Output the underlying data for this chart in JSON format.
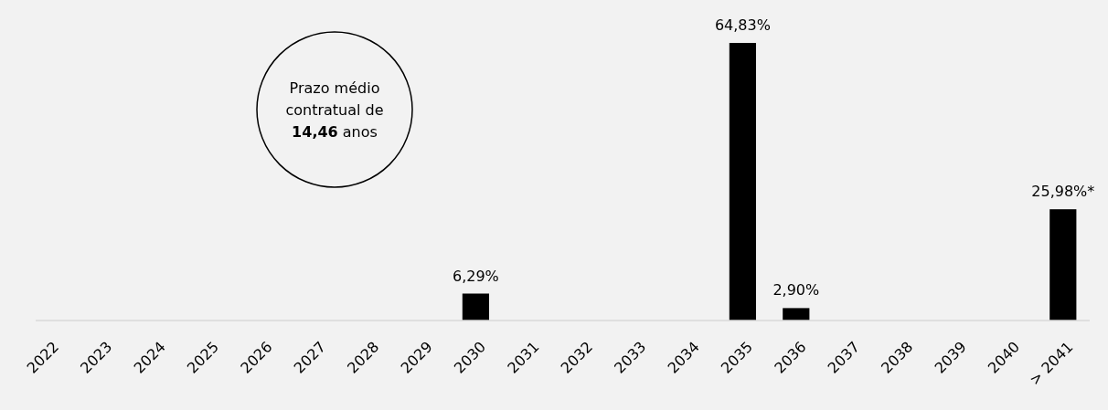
{
  "chart_data": {
    "type": "bar",
    "categories": [
      "2022",
      "2023",
      "2024",
      "2025",
      "2026",
      "2027",
      "2028",
      "2029",
      "2030",
      "2031",
      "2032",
      "2033",
      "2034",
      "2035",
      "2036",
      "2037",
      "2038",
      "2039",
      "2040",
      "> 2041"
    ],
    "values": [
      null,
      null,
      null,
      null,
      null,
      null,
      null,
      null,
      6.29,
      null,
      null,
      null,
      null,
      64.83,
      2.9,
      null,
      null,
      null,
      null,
      25.98
    ],
    "value_labels": [
      null,
      null,
      null,
      null,
      null,
      null,
      null,
      null,
      "6,29%",
      null,
      null,
      null,
      null,
      "64,83%",
      "2,90%",
      null,
      null,
      null,
      null,
      "25,98%*"
    ],
    "color": "#000000",
    "annotations": [
      "Prazo médio contratual de 14,46 anos"
    ]
  }
}
